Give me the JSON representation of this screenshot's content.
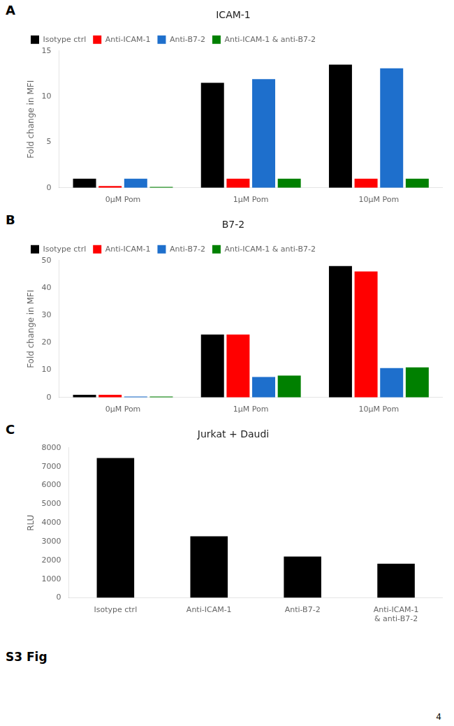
{
  "chart_data": [
    {
      "type": "bar",
      "title": "ICAM-1",
      "ylabel": "Fold change in MFI",
      "categories": [
        "0μM Pom",
        "1μM Pom",
        "10μM Pom"
      ],
      "series": [
        {
          "name": "Isotype ctrl",
          "color": "#000000",
          "values": [
            1.0,
            11.5,
            13.5
          ]
        },
        {
          "name": "Anti-ICAM-1",
          "color": "#ff0000",
          "values": [
            0.2,
            1.0,
            1.0
          ]
        },
        {
          "name": "Anti-B7-2",
          "color": "#1e6fcc",
          "values": [
            1.0,
            11.9,
            13.1
          ]
        },
        {
          "name": "Anti-ICAM-1 & anti-B7-2",
          "color": "#008000",
          "values": [
            0.1,
            1.0,
            1.0
          ]
        }
      ],
      "ylim": [
        0,
        15
      ],
      "yticks": [
        0,
        5,
        10,
        15
      ],
      "grid": false,
      "legend": "upper left",
      "annotations": [
        "A"
      ]
    },
    {
      "type": "bar",
      "title": "B7-2",
      "ylabel": "Fold change in MFI",
      "categories": [
        "0μM Pom",
        "1μM Pom",
        "10μM Pom"
      ],
      "series": [
        {
          "name": "Isotype ctrl",
          "color": "#000000",
          "values": [
            1.0,
            23.0,
            48.0
          ]
        },
        {
          "name": "Anti-ICAM-1",
          "color": "#ff0000",
          "values": [
            1.0,
            23.0,
            46.0
          ]
        },
        {
          "name": "Anti-B7-2",
          "color": "#1e6fcc",
          "values": [
            0.3,
            7.5,
            10.7
          ]
        },
        {
          "name": "Anti-ICAM-1 & anti-B7-2",
          "color": "#008000",
          "values": [
            0.3,
            8.0,
            11.0
          ]
        }
      ],
      "ylim": [
        0,
        50
      ],
      "yticks": [
        0,
        10,
        20,
        30,
        40,
        50
      ],
      "grid": false,
      "legend": "upper left",
      "annotations": [
        "B"
      ]
    },
    {
      "type": "bar",
      "title": "Jurkat + Daudi",
      "ylabel": "RLU",
      "categories": [
        "Isotype ctrl",
        "Anti-ICAM-1",
        "Anti-B7-2",
        "Anti-ICAM-1\n& anti-B7-2"
      ],
      "values": [
        7450,
        3280,
        2200,
        1820
      ],
      "color": "#000000",
      "ylim": [
        0,
        8000
      ],
      "yticks": [
        0,
        1000,
        2000,
        3000,
        4000,
        5000,
        6000,
        7000,
        8000
      ],
      "grid": false,
      "annotations": [
        "C"
      ]
    }
  ],
  "annotations": [
    "S3 Fig",
    "4"
  ]
}
